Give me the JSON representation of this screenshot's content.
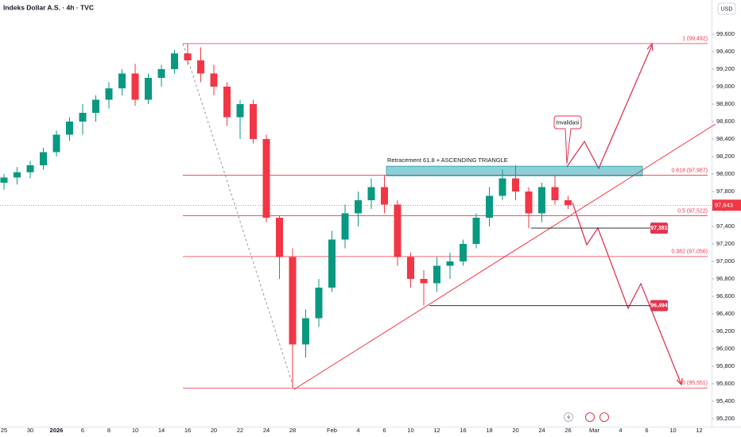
{
  "chart_data": {
    "type": "candlestick",
    "title": "Indeks Dollar A.S. · 4h · TVC",
    "currency": "USD",
    "categories": [
      "25",
      null,
      "30",
      null,
      "2026",
      null,
      "6",
      null,
      "8",
      null,
      "10",
      null,
      "14",
      null,
      "16",
      null,
      "20",
      null,
      "22",
      null,
      "24",
      null,
      "28",
      null,
      null,
      "Feb",
      null,
      "4",
      null,
      "6",
      null,
      "10",
      null,
      "12",
      null,
      "16",
      null,
      "18",
      null,
      "20",
      null,
      "24",
      null,
      "26",
      null,
      "Mar",
      null,
      "4",
      null,
      "6",
      null,
      "10",
      null,
      "12"
    ],
    "open": [
      97900,
      97960,
      98020,
      98100,
      98250,
      98450,
      98600,
      98700,
      98850,
      98980,
      99150,
      98850,
      99100,
      99200,
      99380,
      99300,
      99150,
      99000,
      98650,
      98800,
      98400,
      97500,
      97050,
      96050,
      96350,
      96700,
      97250,
      97550,
      97700,
      97850,
      97650,
      97050,
      96800,
      96750,
      96950,
      97000,
      97200,
      97500,
      97750,
      97950,
      97800,
      97550,
      97850,
      97700,
      null,
      null,
      null,
      null,
      null,
      null,
      null,
      null,
      null,
      null
    ],
    "high": [
      98000,
      98080,
      98150,
      98300,
      98500,
      98650,
      98800,
      98900,
      99050,
      99200,
      99260,
      99150,
      99250,
      99420,
      99492,
      99450,
      99250,
      99050,
      98850,
      98850,
      98450,
      97520,
      97150,
      96450,
      96800,
      97350,
      97650,
      97800,
      97950,
      97987,
      97700,
      97100,
      96900,
      97050,
      97100,
      97250,
      97550,
      97850,
      98050,
      98100,
      97850,
      97900,
      97980,
      97750,
      null,
      null,
      null,
      null,
      null,
      null,
      null,
      null,
      null,
      null
    ],
    "low": [
      97820,
      97880,
      97950,
      98050,
      98200,
      98380,
      98450,
      98600,
      98750,
      98900,
      98780,
      98800,
      99000,
      99150,
      99250,
      99050,
      98900,
      98550,
      98400,
      98350,
      97450,
      96800,
      95551,
      95900,
      96250,
      96650,
      97150,
      97400,
      97600,
      97550,
      96950,
      96700,
      96494,
      96650,
      96800,
      96950,
      97150,
      97400,
      97700,
      97700,
      97381,
      97450,
      97650,
      97600,
      null,
      null,
      null,
      null,
      null,
      null,
      null,
      null,
      null,
      null
    ],
    "close": [
      97960,
      98020,
      98100,
      98250,
      98450,
      98600,
      98700,
      98850,
      98980,
      99150,
      98850,
      99100,
      99200,
      99380,
      99300,
      99150,
      99000,
      98650,
      98800,
      98400,
      97500,
      97050,
      96050,
      96350,
      96700,
      97250,
      97550,
      97700,
      97850,
      97650,
      97050,
      96800,
      96750,
      96950,
      97000,
      97200,
      97500,
      97750,
      97950,
      97800,
      97550,
      97850,
      97700,
      97643,
      null,
      null,
      null,
      null,
      null,
      null,
      null,
      null,
      null,
      null
    ],
    "up_color": "#089981",
    "down_color": "#f23645",
    "ylim": [
      95109,
      99991
    ],
    "yticks": [
      {
        "value": 95200,
        "label": "95,200"
      },
      {
        "value": 95400,
        "label": "95,400"
      },
      {
        "value": 95600,
        "label": "95,600"
      },
      {
        "value": 95800,
        "label": "95,800"
      },
      {
        "value": 96000,
        "label": "96,000"
      },
      {
        "value": 96200,
        "label": "96,200"
      },
      {
        "value": 96400,
        "label": "96,400"
      },
      {
        "value": 96600,
        "label": "96,600"
      },
      {
        "value": 96800,
        "label": "96,800"
      },
      {
        "value": 97000,
        "label": "97,000"
      },
      {
        "value": 97200,
        "label": "97,200"
      },
      {
        "value": 97400,
        "label": "97,400"
      },
      {
        "value": 97600,
        "label": "97,600"
      },
      {
        "value": 97800,
        "label": "97,800"
      },
      {
        "value": 98000,
        "label": "98,000"
      },
      {
        "value": 98200,
        "label": "98,200"
      },
      {
        "value": 98400,
        "label": "98,400"
      },
      {
        "value": 98600,
        "label": "98,600"
      },
      {
        "value": 98800,
        "label": "98,800"
      },
      {
        "value": 99000,
        "label": "99,000"
      },
      {
        "value": 99200,
        "label": "99,200"
      },
      {
        "value": 99400,
        "label": "99,400"
      },
      {
        "value": 99600,
        "label": "99,600"
      }
    ],
    "fib_levels": [
      {
        "value": 99492,
        "label": "1 (99,492)"
      },
      {
        "value": 97987,
        "label": "0.618 (97,987)"
      },
      {
        "value": 97522,
        "label": "0.5 (97,522)"
      },
      {
        "value": 97056,
        "label": "0.382 (97,056)"
      },
      {
        "value": 95551,
        "label": "0 (95,551)"
      }
    ],
    "last_price": {
      "value": 97643,
      "label": "97,643"
    },
    "levels": [
      {
        "value": 97381,
        "label": "97,381"
      },
      {
        "value": 96494,
        "label": "96,494"
      }
    ],
    "zone": {
      "label": "Retracement 61.8 + ASCENDING TRIANGLE",
      "ylim": [
        97980,
        98090
      ]
    },
    "callout": "Invalidasi"
  }
}
